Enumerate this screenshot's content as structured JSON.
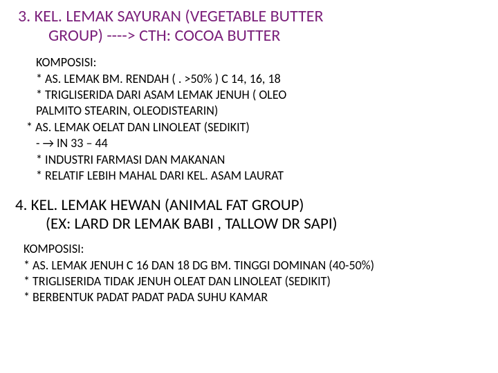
{
  "section3": {
    "title_line1": "3. KEL. LEMAK SAYURAN (VEGETABLE BUTTER",
    "title_line2": "GROUP)    ----> CTH: COCOA BUTTER",
    "body": {
      "l1": "KOMPOSISI:",
      "l2": "* AS. LEMAK BM. RENDAH ( . >50% ) C 14, 16, 18",
      "l3": "* TRIGLISERIDA DARI ASAM LEMAK JENUH ( OLEO",
      "l4": "PALMITO STEARIN, OLEODISTEARIN)",
      "l5": "* AS. LEMAK OELAT DAN LINOLEAT (SEDIKIT)",
      "l6": "- → IN 33 – 44",
      "l7": "* INDUSTRI FARMASI DAN MAKANAN",
      "l8": "* RELATIF LEBIH MAHAL DARI KEL. ASAM LAURAT"
    }
  },
  "section4": {
    "title_line1": "4. KEL. LEMAK HEWAN (ANIMAL FAT GROUP)",
    "title_line2": "(EX: LARD DR LEMAK BABI , TALLOW DR SAPI)",
    "body": {
      "l1": "KOMPOSISI:",
      "l2": "* AS. LEMAK JENUH C 16 DAN 18  DG BM. TINGGI  DOMINAN (40-50%)",
      "l3": "* TRIGLISERIDA TIDAK JENUH OLEAT DAN    LINOLEAT (SEDIKIT)",
      "l4": "* BERBENTUK PADAT PADAT PADA SUHU KAMAR"
    }
  },
  "style": {
    "heading_color": "#7a1f7a",
    "body_color": "#000000",
    "heading_fontsize": 24,
    "body_fontsize": 18,
    "background": "#ffffff"
  }
}
